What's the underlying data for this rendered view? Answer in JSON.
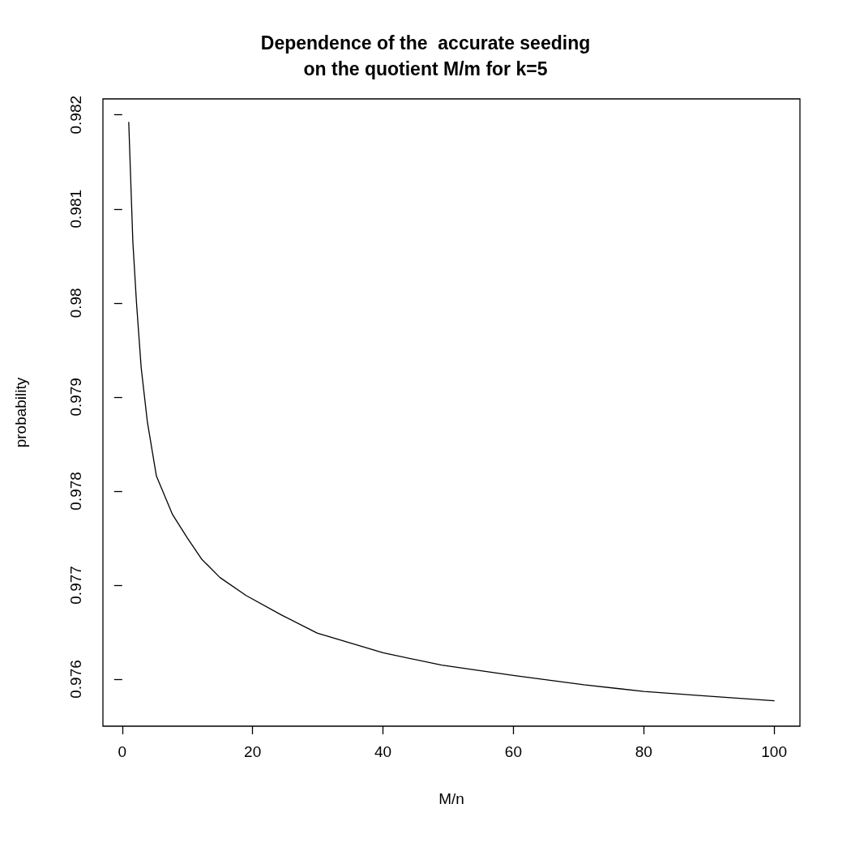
{
  "chart_data": {
    "type": "line",
    "title": "Dependence of the  accurate seeding\non the quotient M/m for k=5",
    "xlabel": "M/n",
    "ylabel": "probability",
    "series": [
      {
        "color": "#000000",
        "x": [
          1,
          1.63,
          2.19,
          2.91,
          3.85,
          5.24,
          7.72,
          10,
          12.14,
          15,
          19,
          24.5,
          29.9,
          40,
          49,
          60,
          70.8,
          80,
          89.8,
          100
        ],
        "values": [
          0.98192,
          0.98065,
          0.98,
          0.97931,
          0.97874,
          0.97816,
          0.97775,
          0.9775,
          0.97728,
          0.97708,
          0.97689,
          0.97668,
          0.97649,
          0.97628,
          0.97615,
          0.97604,
          0.97594,
          0.97587,
          0.97582,
          0.97577
        ]
      }
    ],
    "xlim": [
      -2.96,
      103.96
    ],
    "xticks": [
      0,
      20,
      40,
      60,
      80,
      100
    ],
    "ylim": [
      0.9755,
      0.98217
    ],
    "yticks": [
      0.976,
      0.977,
      0.978,
      0.979,
      0.98,
      0.981,
      0.982
    ],
    "grid": false
  }
}
